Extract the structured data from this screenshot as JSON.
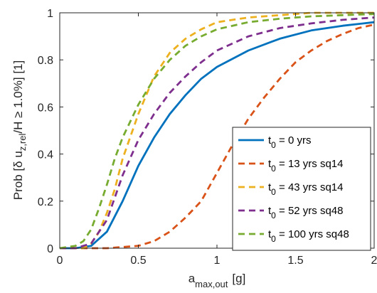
{
  "chart_data": {
    "type": "line",
    "xlabel": {
      "base": "a",
      "sub": "max,out",
      "unit": "[g]"
    },
    "ylabel": {
      "pre": "Prob [δ u",
      "sub": "z,rel",
      "post": "/H ≥ 1.0%] [1]"
    },
    "xlim": [
      0,
      2
    ],
    "ylim": [
      0,
      1
    ],
    "xticks": [
      0,
      0.5,
      1,
      1.5,
      2
    ],
    "xtick_labels": [
      "0",
      "0.5",
      "1",
      "1.5",
      "2"
    ],
    "yticks": [
      0,
      0.2,
      0.4,
      0.6,
      0.8,
      1
    ],
    "ytick_labels": [
      "0",
      "0.2",
      "0.4",
      "0.6",
      "0.8",
      "1"
    ],
    "grid": false,
    "legend_position": "bottom-right",
    "series": [
      {
        "label_pre": "t",
        "label_sub": "0",
        "label_post": " = 0 yrs",
        "color": "#0072BD",
        "dash": "solid",
        "x": [
          0,
          0.1,
          0.2,
          0.3,
          0.4,
          0.5,
          0.6,
          0.7,
          0.8,
          0.9,
          1.0,
          1.2,
          1.4,
          1.6,
          1.8,
          2.0
        ],
        "y": [
          0,
          0,
          0.01,
          0.07,
          0.2,
          0.35,
          0.47,
          0.57,
          0.65,
          0.72,
          0.77,
          0.84,
          0.89,
          0.925,
          0.945,
          0.96
        ]
      },
      {
        "label_pre": "t",
        "label_sub": "0",
        "label_post": " = 13 yrs sq14",
        "color": "#D95319",
        "dash": "dashed",
        "x": [
          0,
          0.3,
          0.5,
          0.6,
          0.7,
          0.8,
          0.9,
          1.0,
          1.1,
          1.2,
          1.3,
          1.4,
          1.5,
          1.6,
          1.7,
          1.8,
          1.9,
          2.0
        ],
        "y": [
          0,
          0,
          0.01,
          0.03,
          0.07,
          0.13,
          0.2,
          0.32,
          0.44,
          0.55,
          0.64,
          0.72,
          0.79,
          0.84,
          0.88,
          0.91,
          0.935,
          0.95
        ]
      },
      {
        "label_pre": "t",
        "label_sub": "0",
        "label_post": " = 43 yrs sq14",
        "color": "#EDB120",
        "dash": "dashed",
        "x": [
          0,
          0.15,
          0.2,
          0.25,
          0.3,
          0.35,
          0.4,
          0.5,
          0.6,
          0.7,
          0.8,
          0.9,
          1.0,
          1.2,
          1.4,
          1.6,
          1.8,
          2.0
        ],
        "y": [
          0,
          0,
          0.02,
          0.07,
          0.15,
          0.25,
          0.38,
          0.57,
          0.73,
          0.83,
          0.89,
          0.93,
          0.96,
          0.98,
          0.99,
          1.0,
          1.0,
          1.0
        ]
      },
      {
        "label_pre": "t",
        "label_sub": "0",
        "label_post": " = 52 yrs sq48",
        "color": "#7E2F8E",
        "dash": "dashed",
        "x": [
          0,
          0.1,
          0.2,
          0.3,
          0.4,
          0.5,
          0.6,
          0.7,
          0.8,
          0.9,
          1.0,
          1.2,
          1.4,
          1.6,
          1.8,
          2.0
        ],
        "y": [
          0,
          0,
          0.02,
          0.12,
          0.31,
          0.46,
          0.57,
          0.66,
          0.73,
          0.79,
          0.84,
          0.9,
          0.935,
          0.955,
          0.97,
          0.98
        ]
      },
      {
        "label_pre": "t",
        "label_sub": "0",
        "label_post": " = 100 yrs sq48",
        "color": "#77AC30",
        "dash": "dashed",
        "x": [
          0,
          0.1,
          0.15,
          0.2,
          0.25,
          0.3,
          0.35,
          0.4,
          0.5,
          0.6,
          0.7,
          0.8,
          0.9,
          1.0,
          1.2,
          1.4,
          1.6,
          1.8,
          2.0
        ],
        "y": [
          0,
          0.01,
          0.03,
          0.08,
          0.17,
          0.27,
          0.38,
          0.47,
          0.61,
          0.72,
          0.8,
          0.86,
          0.9,
          0.93,
          0.96,
          0.975,
          0.985,
          0.99,
          0.995
        ]
      }
    ]
  }
}
